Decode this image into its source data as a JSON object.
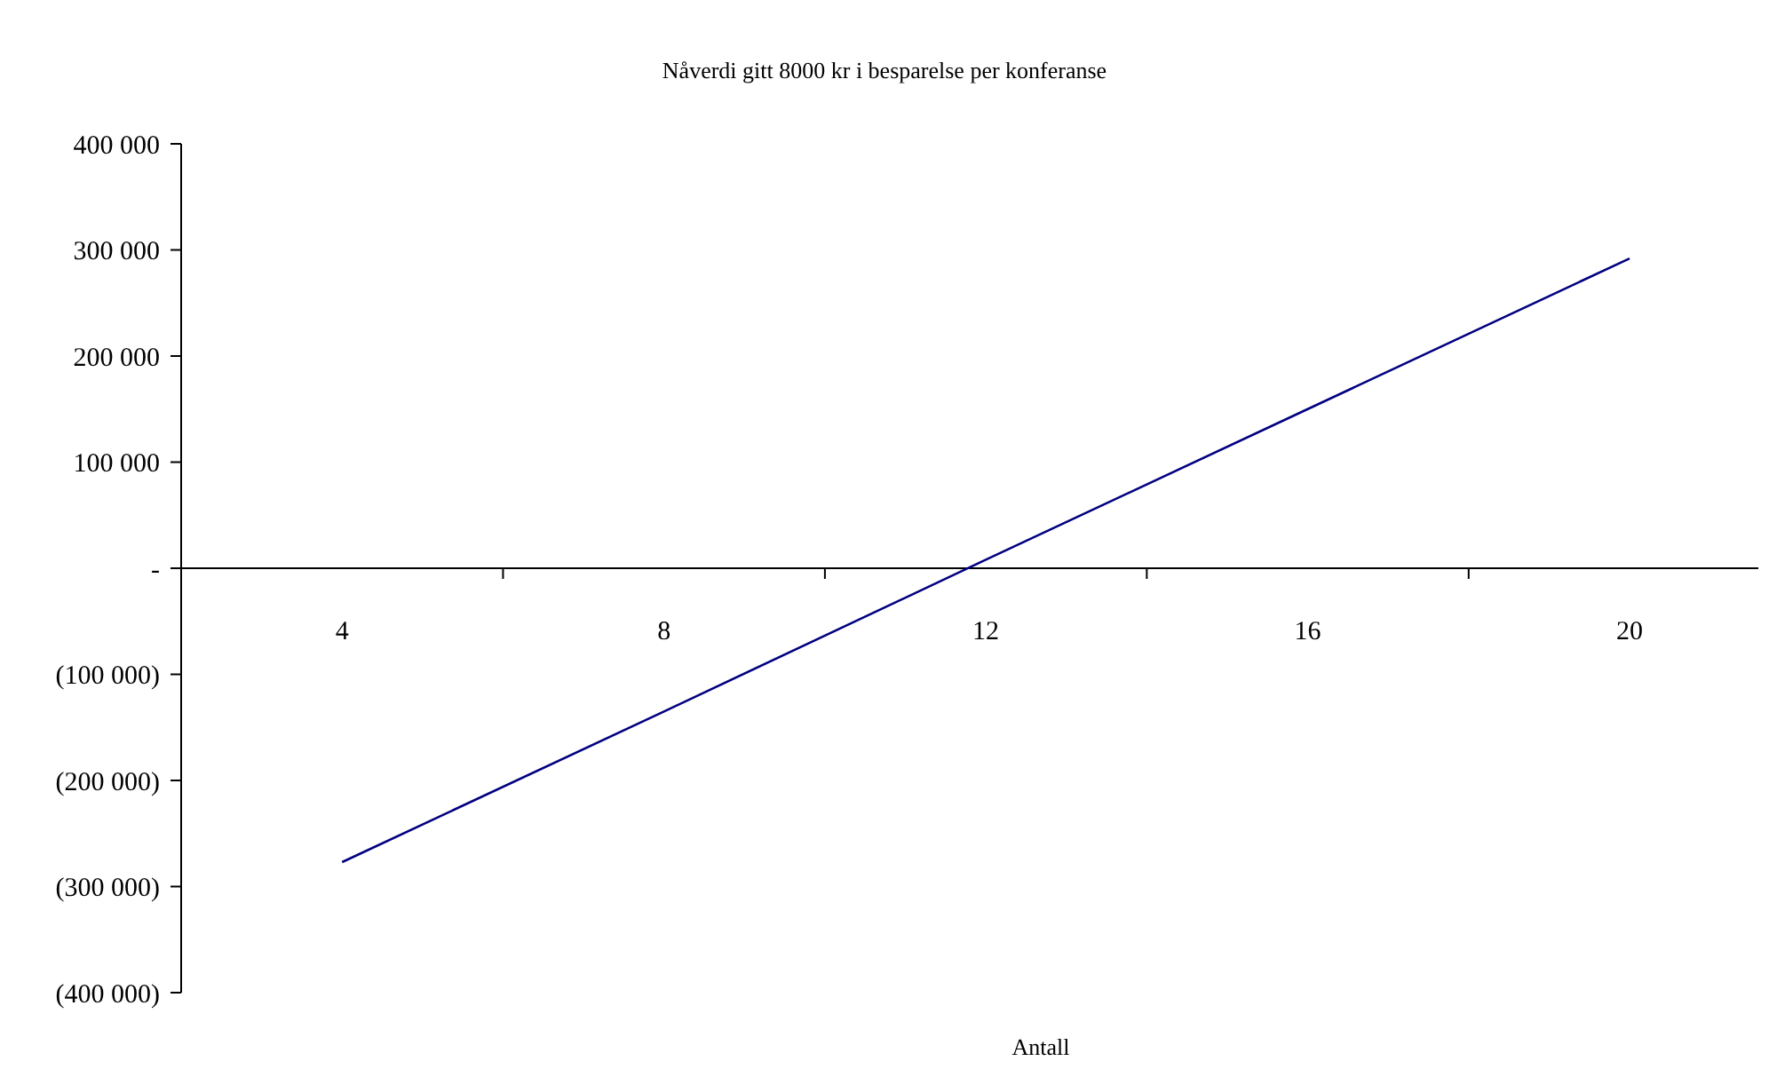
{
  "chart_data": {
    "type": "line",
    "title": "Nåverdi gitt 8000 kr i besparelse per konferanse",
    "xlabel": "Antall",
    "categories": [
      "4",
      "8",
      "12",
      "16",
      "20"
    ],
    "series": [
      {
        "color": "#000080",
        "values": [
          -277000,
          -135000,
          8000,
          150000,
          292000
        ]
      }
    ],
    "ylim": [
      -400000,
      400000
    ],
    "yticks": [
      {
        "value": 400000,
        "label": "400 000"
      },
      {
        "value": 300000,
        "label": "300 000"
      },
      {
        "value": 200000,
        "label": "200 000"
      },
      {
        "value": 100000,
        "label": "100 000"
      },
      {
        "value": 0,
        "label": "-"
      },
      {
        "value": -100000,
        "label": "(100 000)"
      },
      {
        "value": -200000,
        "label": "(200 000)"
      },
      {
        "value": -300000,
        "label": "(300 000)"
      },
      {
        "value": -400000,
        "label": "(400 000)"
      }
    ],
    "grid": false,
    "marker": "none",
    "line_style": "solid"
  }
}
